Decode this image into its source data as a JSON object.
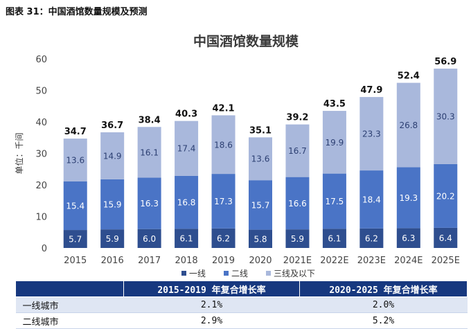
{
  "figure_caption": "图表 31：中国酒馆数量规模及预测",
  "colors": {
    "tier1": "#2e4e8f",
    "tier2": "#4a74c6",
    "tier3": "#a9b8dc",
    "header": "#17387f"
  },
  "chart_data": {
    "type": "bar",
    "stacked": true,
    "title": "中国酒馆数量规模",
    "ylabel": "单位：千间",
    "xlabel": "",
    "ylim": [
      0,
      60
    ],
    "yticks": [
      0,
      10,
      20,
      30,
      40,
      50,
      60
    ],
    "grid": false,
    "legend_position": "bottom",
    "categories": [
      "2015",
      "2016",
      "2017",
      "2018",
      "2019",
      "2020",
      "2021E",
      "2022E",
      "2023E",
      "2024E",
      "2025E"
    ],
    "series": [
      {
        "name": "一线",
        "values": [
          5.7,
          5.9,
          6.0,
          6.1,
          6.2,
          5.8,
          5.9,
          6.1,
          6.2,
          6.3,
          6.4
        ]
      },
      {
        "name": "二线",
        "values": [
          15.4,
          15.9,
          16.3,
          16.8,
          17.3,
          15.7,
          16.6,
          17.5,
          18.4,
          19.3,
          20.2
        ]
      },
      {
        "name": "三线及以下",
        "values": [
          13.6,
          14.9,
          16.1,
          17.4,
          18.6,
          13.6,
          16.7,
          19.9,
          23.3,
          26.8,
          30.3
        ]
      }
    ],
    "totals": [
      34.7,
      36.7,
      38.4,
      40.3,
      42.1,
      35.1,
      39.2,
      43.5,
      47.9,
      52.4,
      56.9
    ]
  },
  "table": {
    "headers": [
      "",
      "2015-2019 年复合增长率",
      "2020-2025 年复合增长率"
    ],
    "rows": [
      {
        "label": "一线城市",
        "cagr_2015_2019": "2.1%",
        "cagr_2020_2025": "2.0%"
      },
      {
        "label": "二线城市",
        "cagr_2015_2019": "2.9%",
        "cagr_2020_2025": "5.2%"
      }
    ]
  }
}
